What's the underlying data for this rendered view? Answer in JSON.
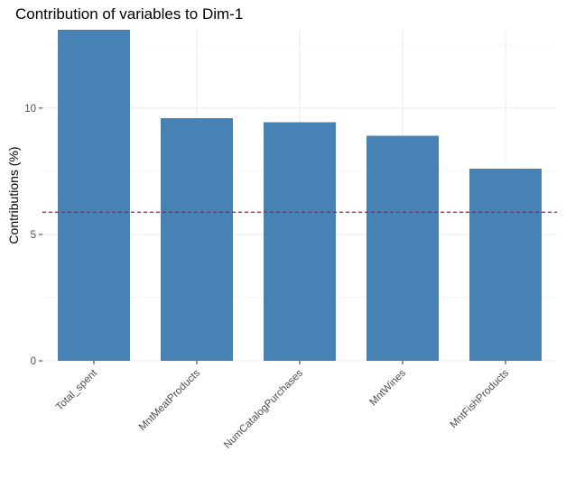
{
  "chart_data": {
    "type": "bar",
    "title": "Contribution of variables to Dim-1",
    "xlabel": "",
    "ylabel": "Contributions (%)",
    "categories": [
      "Total_spent",
      "MntMeatProducts",
      "NumCatalogPurchases",
      "MntWines",
      "MntFishProducts"
    ],
    "values": [
      13.1,
      9.6,
      9.45,
      8.9,
      7.6
    ],
    "ylim": [
      0,
      13.1
    ],
    "yticks": [
      0,
      5,
      10
    ],
    "reference_line": 5.88,
    "grid": true,
    "legend": "none",
    "colors": {
      "bar": "#4682B4",
      "reference_line": "#B2182B"
    }
  }
}
